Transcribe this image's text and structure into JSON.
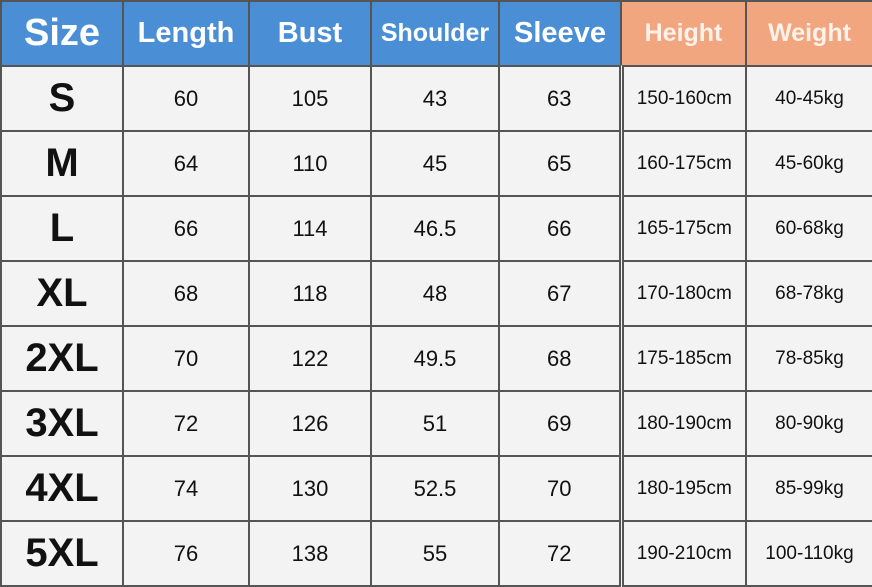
{
  "colors": {
    "header_blue": "#4a8fd6",
    "header_orange": "#f2a67f",
    "cell_bg": "#f3f3f3"
  },
  "headers": [
    "Size",
    "Length",
    "Bust",
    "Shoulder",
    "Sleeve",
    "Height",
    "Weight"
  ],
  "rows": [
    [
      "S",
      "60",
      "105",
      "43",
      "63",
      "150-160cm",
      "40-45kg"
    ],
    [
      "M",
      "64",
      "110",
      "45",
      "65",
      "160-175cm",
      "45-60kg"
    ],
    [
      "L",
      "66",
      "114",
      "46.5",
      "66",
      "165-175cm",
      "60-68kg"
    ],
    [
      "XL",
      "68",
      "118",
      "48",
      "67",
      "170-180cm",
      "68-78kg"
    ],
    [
      "2XL",
      "70",
      "122",
      "49.5",
      "68",
      "175-185cm",
      "78-85kg"
    ],
    [
      "3XL",
      "72",
      "126",
      "51",
      "69",
      "180-190cm",
      "80-90kg"
    ],
    [
      "4XL",
      "74",
      "130",
      "52.5",
      "70",
      "180-195cm",
      "85-99kg"
    ],
    [
      "5XL",
      "76",
      "138",
      "55",
      "72",
      "190-210cm",
      "100-110kg"
    ]
  ]
}
